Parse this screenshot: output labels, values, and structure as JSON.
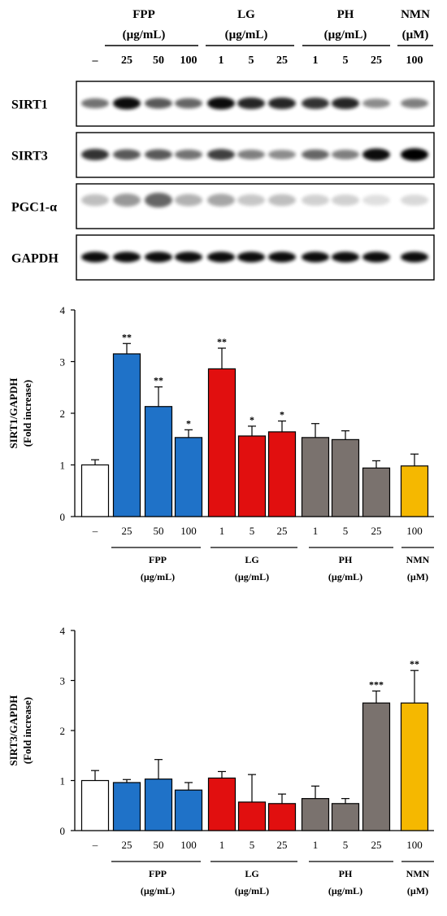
{
  "blot": {
    "groups": [
      {
        "name": "FPP",
        "unit": "(µg/mL)"
      },
      {
        "name": "LG",
        "unit": "(µg/mL)"
      },
      {
        "name": "PH",
        "unit": "(µg/mL)"
      },
      {
        "name": "NMN",
        "unit": "(µM)"
      }
    ],
    "lanes": [
      "–",
      "25",
      "50",
      "100",
      "1",
      "5",
      "25",
      "1",
      "5",
      "25",
      "100"
    ],
    "proteins": [
      {
        "label": "SIRT1",
        "intensity": [
          0.55,
          0.95,
          0.65,
          0.6,
          0.95,
          0.85,
          0.85,
          0.8,
          0.85,
          0.45,
          0.5
        ]
      },
      {
        "label": "SIRT3",
        "intensity": [
          0.8,
          0.65,
          0.65,
          0.55,
          0.75,
          0.5,
          0.45,
          0.6,
          0.5,
          0.95,
          1.0
        ]
      },
      {
        "label": "PGC1-α",
        "intensity": [
          0.25,
          0.4,
          0.6,
          0.3,
          0.35,
          0.22,
          0.25,
          0.18,
          0.18,
          0.12,
          0.15
        ]
      },
      {
        "label": "GAPDH",
        "intensity": [
          0.95,
          0.95,
          0.95,
          0.95,
          0.95,
          0.95,
          0.95,
          0.95,
          0.95,
          0.95,
          0.95
        ]
      }
    ]
  },
  "chart_data": [
    {
      "type": "bar",
      "ylabel": "SIRT1/GAPDH",
      "ylabel2": "(Fold increase)",
      "ylim": [
        0,
        4
      ],
      "yticks": [
        0,
        1,
        2,
        3,
        4
      ],
      "categories": [
        "–",
        "25",
        "50",
        "100",
        "1",
        "5",
        "25",
        "1",
        "5",
        "25",
        "100"
      ],
      "values": [
        1.0,
        3.15,
        2.13,
        1.53,
        2.86,
        1.56,
        1.64,
        1.53,
        1.49,
        0.94,
        0.98
      ],
      "errors": [
        0.1,
        0.2,
        0.38,
        0.15,
        0.4,
        0.19,
        0.21,
        0.27,
        0.17,
        0.14,
        0.23
      ],
      "significance": [
        "",
        "**",
        "**",
        "*",
        "**",
        "*",
        "*",
        "",
        "",
        "",
        ""
      ],
      "colors": [
        "#ffffff",
        "#1f72c8",
        "#1f72c8",
        "#1f72c8",
        "#e10f0f",
        "#e10f0f",
        "#e10f0f",
        "#7a726e",
        "#7a726e",
        "#7a726e",
        "#f5b800"
      ],
      "groups": [
        {
          "name": "FPP",
          "unit": "(µg/mL)"
        },
        {
          "name": "LG",
          "unit": "(µg/mL)"
        },
        {
          "name": "PH",
          "unit": "(µg/mL)"
        },
        {
          "name": "NMN",
          "unit": "(µM)"
        }
      ]
    },
    {
      "type": "bar",
      "ylabel": "SIRT3/GAPDH",
      "ylabel2": "(Fold increase)",
      "ylim": [
        0,
        4
      ],
      "yticks": [
        0,
        1,
        2,
        3,
        4
      ],
      "categories": [
        "–",
        "25",
        "50",
        "100",
        "1",
        "5",
        "25",
        "1",
        "5",
        "25",
        "100"
      ],
      "values": [
        1.0,
        0.96,
        1.03,
        0.81,
        1.05,
        0.57,
        0.54,
        0.64,
        0.54,
        2.55,
        2.55
      ],
      "errors": [
        0.2,
        0.06,
        0.39,
        0.15,
        0.13,
        0.55,
        0.19,
        0.25,
        0.1,
        0.24,
        0.65
      ],
      "significance": [
        "",
        "",
        "",
        "",
        "",
        "",
        "",
        "",
        "",
        "***",
        "**"
      ],
      "colors": [
        "#ffffff",
        "#1f72c8",
        "#1f72c8",
        "#1f72c8",
        "#e10f0f",
        "#e10f0f",
        "#e10f0f",
        "#7a726e",
        "#7a726e",
        "#7a726e",
        "#f5b800"
      ],
      "groups": [
        {
          "name": "FPP",
          "unit": "(µg/mL)"
        },
        {
          "name": "LG",
          "unit": "(µg/mL)"
        },
        {
          "name": "PH",
          "unit": "(µg/mL)"
        },
        {
          "name": "NMN",
          "unit": "(µM)"
        }
      ]
    }
  ]
}
